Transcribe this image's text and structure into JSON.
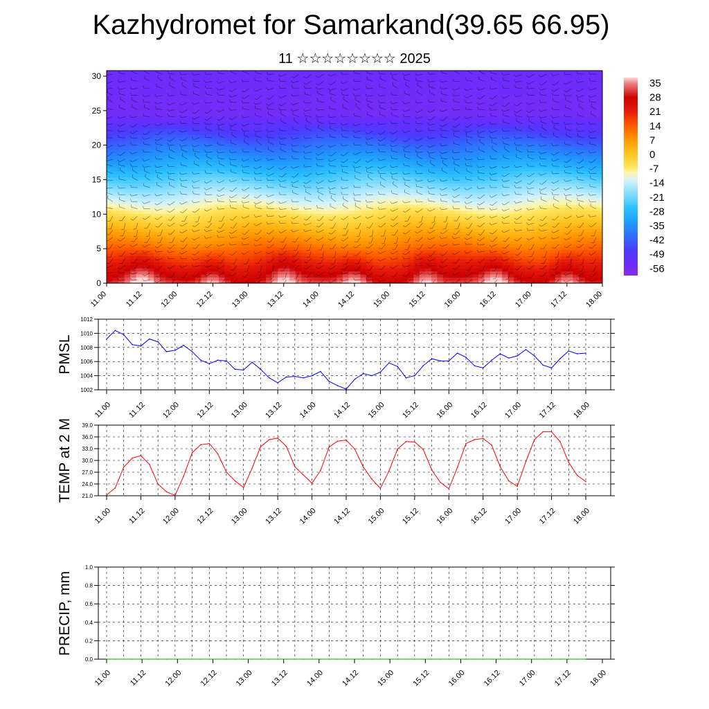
{
  "title": "Kazhydromet for Samarkand(39.65 66.95)",
  "subtitle": "11 ☆☆☆☆☆☆☆☆ 2025",
  "chart_data": [
    {
      "type": "heatmap",
      "name": "vertical cross-section (temperature shading with wind barbs)",
      "xlabel": "",
      "ylabel": "",
      "x_ticklabels": [
        "11.00",
        "11.12",
        "12.00",
        "12.12",
        "13.00",
        "13.12",
        "14.00",
        "14.12",
        "15.00",
        "15.12",
        "16.00",
        "16.12",
        "17.00",
        "17.12",
        "18.00"
      ],
      "y_ticks": [
        0,
        5,
        10,
        15,
        20,
        25,
        30
      ],
      "ylim": [
        0,
        30.8
      ],
      "colorbar_labels": [
        "35",
        "28",
        "21",
        "14",
        "7",
        "0",
        "-7",
        "-14",
        "-21",
        "-28",
        "-35",
        "-42",
        "-49",
        "-56"
      ],
      "colorbar_range": [
        -62,
        38
      ],
      "color_stops": [
        {
          "value": -62,
          "color": "#8a2be2"
        },
        {
          "value": -56,
          "color": "#6a2cff"
        },
        {
          "value": -49,
          "color": "#4b3bff"
        },
        {
          "value": -42,
          "color": "#2f6fff"
        },
        {
          "value": -35,
          "color": "#1e9cff"
        },
        {
          "value": -28,
          "color": "#2cc0ff"
        },
        {
          "value": -21,
          "color": "#7fdcff"
        },
        {
          "value": -14,
          "color": "#d4f2fb"
        },
        {
          "value": -10,
          "color": "#fff6b0"
        },
        {
          "value": -7,
          "color": "#ffe45a"
        },
        {
          "value": 0,
          "color": "#ffc21f"
        },
        {
          "value": 7,
          "color": "#ff9500"
        },
        {
          "value": 14,
          "color": "#ff5a00"
        },
        {
          "value": 21,
          "color": "#e61a0a"
        },
        {
          "value": 28,
          "color": "#cc0000"
        },
        {
          "value": 35,
          "color": "#f08080"
        },
        {
          "value": 38,
          "color": "#ffd6d6"
        }
      ],
      "profile_note": "temperature decreases with height from about 30 at the surface to about -58 near 24-27 and rises slightly aloft; surface maxima near each XX.12 time"
    },
    {
      "type": "line",
      "ylabel": "PMSL",
      "ylim": [
        1002,
        1012
      ],
      "y_ticks": [
        1002,
        1004,
        1006,
        1008,
        1010,
        1012
      ],
      "x_ticklabels": [
        "11.00",
        "11.12",
        "12.00",
        "12.12",
        "13.00",
        "13.12",
        "14.00",
        "14.12",
        "15.00",
        "15.12",
        "16.00",
        "16.12",
        "17.00",
        "17.12",
        "18.00"
      ],
      "x_step_hours": 3,
      "series": [
        {
          "color": "#0000ff",
          "values": [
            1009.2,
            1010.4,
            1009.8,
            1008.4,
            1008.2,
            1009.2,
            1008.8,
            1007.4,
            1007.6,
            1008.3,
            1007.4,
            1006.2,
            1005.7,
            1006.2,
            1006.1,
            1004.9,
            1004.8,
            1005.9,
            1004.9,
            1003.7,
            1003.0,
            1003.8,
            1003.9,
            1003.7,
            1004.0,
            1004.6,
            1003.2,
            1002.6,
            1002.1,
            1003.5,
            1004.3,
            1004.0,
            1004.5,
            1005.8,
            1005.3,
            1003.7,
            1004.0,
            1005.4,
            1006.4,
            1006.1,
            1006.1,
            1007.2,
            1006.6,
            1005.4,
            1005.1,
            1006.2,
            1007.1,
            1006.5,
            1006.8,
            1007.7,
            1006.8,
            1005.5,
            1005.1,
            1006.4,
            1007.5,
            1007.1,
            1007.2
          ]
        }
      ]
    },
    {
      "type": "line",
      "ylabel": "TEMP at 2 M",
      "ylim": [
        21.0,
        39.0
      ],
      "y_ticks": [
        "21.0",
        "24.0",
        "27.0",
        "30.0",
        "33.0",
        "36.0",
        "39.0"
      ],
      "x_ticklabels": [
        "11.00",
        "11.12",
        "12.00",
        "12.12",
        "13.00",
        "13.12",
        "14.00",
        "14.12",
        "15.00",
        "15.12",
        "16.00",
        "16.12",
        "17.00",
        "17.12",
        "18.00"
      ],
      "x_step_hours": 3,
      "series": [
        {
          "color": "#ff0000",
          "values": [
            21.2,
            23.0,
            28.3,
            30.6,
            31.2,
            29.0,
            24.0,
            22.0,
            21.1,
            26.0,
            32.0,
            34.0,
            34.3,
            31.7,
            27.0,
            24.8,
            23.1,
            28.0,
            33.5,
            35.3,
            35.7,
            33.6,
            28.4,
            26.3,
            24.2,
            27.4,
            33.4,
            34.9,
            35.2,
            32.9,
            28.3,
            25.2,
            22.9,
            27.3,
            32.9,
            34.8,
            34.7,
            32.8,
            27.6,
            24.4,
            22.8,
            28.2,
            34.3,
            35.3,
            35.6,
            33.9,
            28.4,
            24.8,
            23.4,
            29.7,
            35.3,
            37.3,
            37.3,
            34.8,
            29.5,
            26.2,
            24.6
          ]
        }
      ]
    },
    {
      "type": "line",
      "ylabel": "PRECIP, mm",
      "ylim": [
        0.0,
        1.0
      ],
      "y_ticks": [
        "0.0",
        "0.2",
        "0.4",
        "0.6",
        "0.8",
        "1.0"
      ],
      "x_ticklabels": [
        "11.00",
        "11.12",
        "12.00",
        "12.12",
        "13.00",
        "13.12",
        "14.00",
        "14.12",
        "15.00",
        "15.12",
        "16.00",
        "16.12",
        "17.00",
        "17.12",
        "18.00"
      ],
      "x_step_hours": 3,
      "series": [
        {
          "color": "#00aa00",
          "values": [
            0,
            0,
            0,
            0,
            0,
            0,
            0,
            0,
            0,
            0,
            0,
            0,
            0,
            0,
            0,
            0,
            0,
            0,
            0,
            0,
            0,
            0,
            0,
            0,
            0,
            0,
            0,
            0,
            0,
            0,
            0,
            0,
            0,
            0,
            0,
            0,
            0,
            0,
            0,
            0,
            0,
            0,
            0,
            0,
            0,
            0,
            0,
            0,
            0,
            0,
            0,
            0,
            0,
            0,
            0,
            0,
            0
          ]
        }
      ]
    }
  ]
}
